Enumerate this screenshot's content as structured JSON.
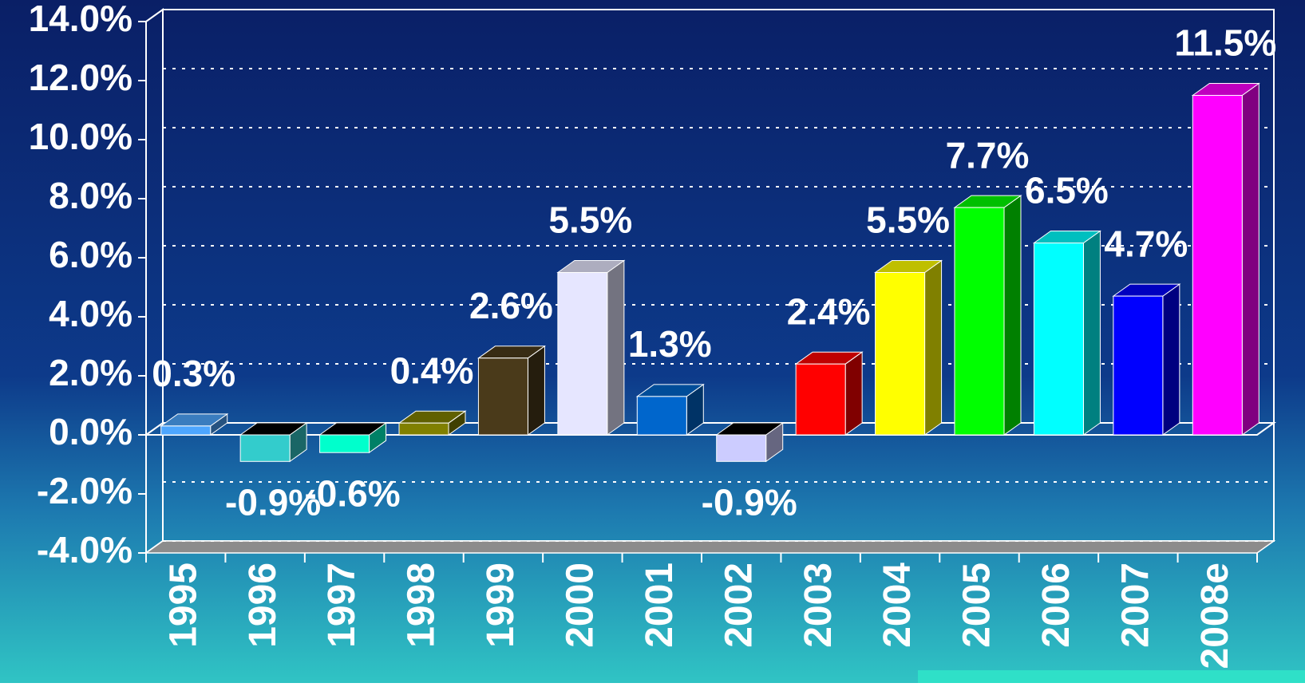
{
  "chart_data": {
    "type": "bar3d",
    "categories": [
      "1995",
      "1996",
      "1997",
      "1998",
      "1999",
      "2000",
      "2001",
      "2002",
      "2003",
      "2004",
      "2005",
      "2006",
      "2007",
      "2008e"
    ],
    "values": [
      0.3,
      -0.9,
      -0.6,
      0.4,
      2.6,
      5.5,
      1.3,
      -0.9,
      2.4,
      5.5,
      7.7,
      6.5,
      4.7,
      11.5
    ],
    "value_labels": [
      "0.3%",
      "-0.9%",
      "-0.6%",
      "0.4%",
      "2.6%",
      "5.5%",
      "1.3%",
      "-0.9%",
      "2.4%",
      "5.5%",
      "7.7%",
      "6.5%",
      "4.7%",
      "11.5%"
    ],
    "colors": [
      "#4da6ff",
      "#33cccc",
      "#00ffcc",
      "#808000",
      "#4a3a1a",
      "#e6e6ff",
      "#0066cc",
      "#ccccff",
      "#ff0000",
      "#ffff00",
      "#00ff00",
      "#00ffff",
      "#0000ff",
      "#ff00ff"
    ],
    "ylim": [
      -4,
      14
    ],
    "yticks": [
      {
        "value": -4,
        "label": "-4.0%"
      },
      {
        "value": -2,
        "label": "-2.0%"
      },
      {
        "value": 0,
        "label": "0.0%"
      },
      {
        "value": 2,
        "label": "2.0%"
      },
      {
        "value": 4,
        "label": "4.0%"
      },
      {
        "value": 6,
        "label": "6.0%"
      },
      {
        "value": 8,
        "label": "8.0%"
      },
      {
        "value": 10,
        "label": "10.0%"
      },
      {
        "value": 12,
        "label": "12.0%"
      },
      {
        "value": 14,
        "label": "14.0%"
      }
    ],
    "grid": true
  }
}
